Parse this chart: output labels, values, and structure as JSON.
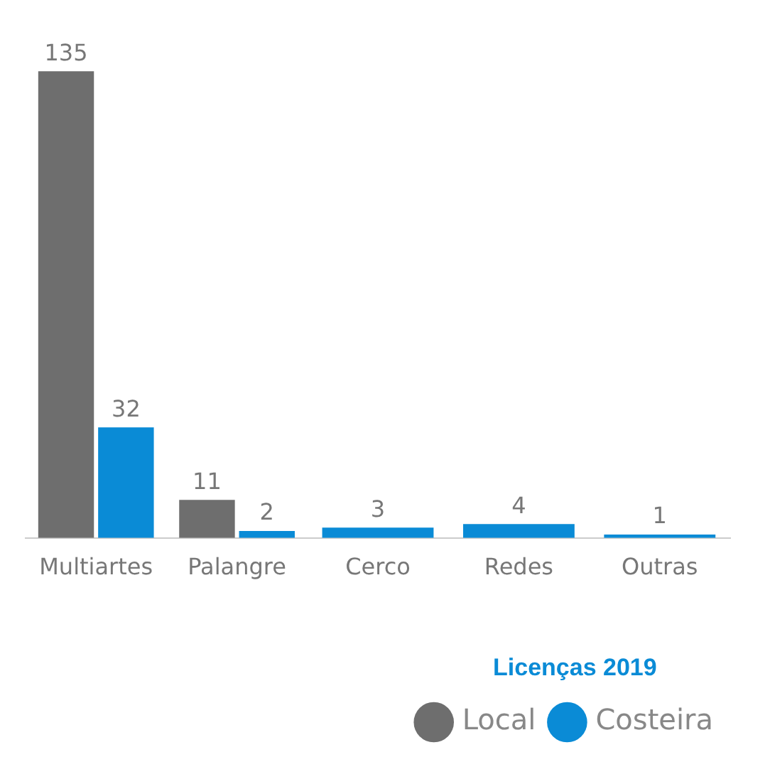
{
  "chart_data": {
    "type": "bar",
    "categories": [
      "Multiartes",
      "Palangre",
      "Cerco",
      "Redes",
      "Outras"
    ],
    "series": [
      {
        "name": "Local",
        "color": "#6e6e6e",
        "values": [
          135,
          11,
          null,
          null,
          null
        ]
      },
      {
        "name": "Costeira",
        "color": "#0a8bd6",
        "values": [
          32,
          2,
          3,
          4,
          1
        ]
      }
    ],
    "legend_title": "Licenças 2019",
    "legend": "bottom right",
    "data_labels": true,
    "grid": false,
    "tick_labels": "x"
  }
}
